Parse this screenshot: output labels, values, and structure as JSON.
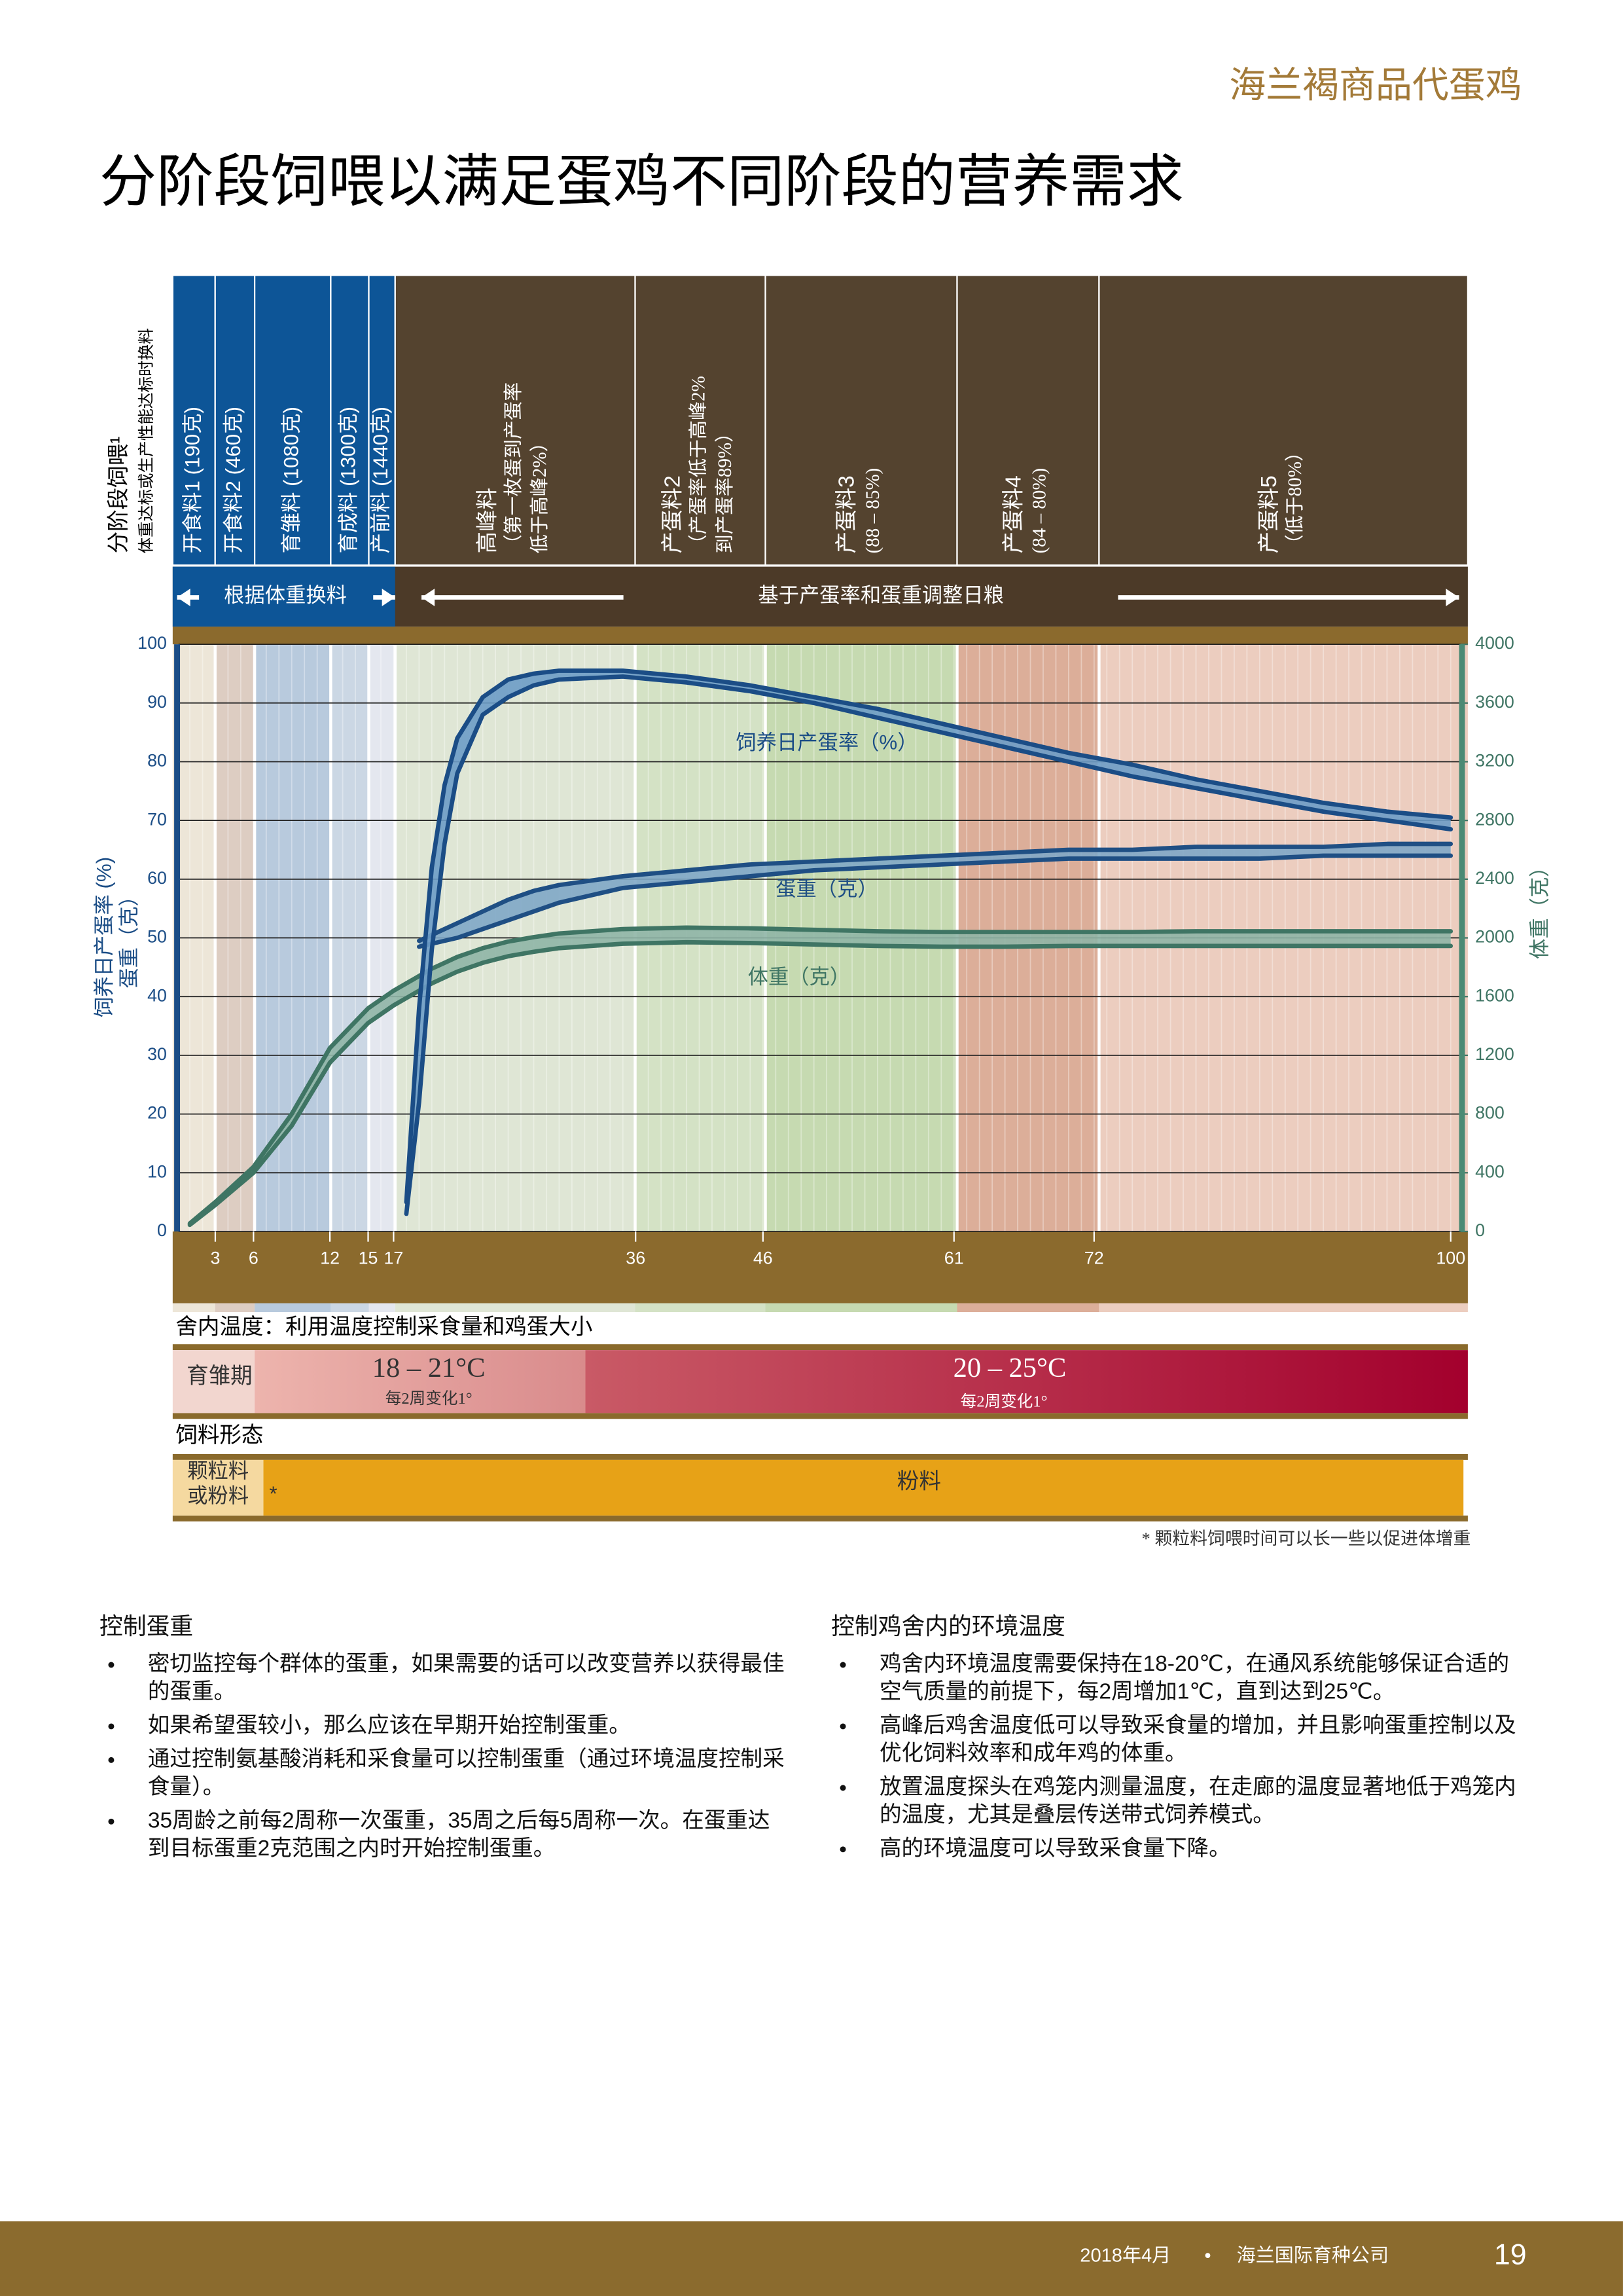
{
  "header": {
    "brand": "海兰褐商品代蛋鸡",
    "title": "分阶段饲喂以满足蛋鸡不同阶段的营养需求"
  },
  "phase_feeding": {
    "label": "分阶段饲喂¹",
    "note": "体重达标或生产性能达标时换料",
    "phases": [
      {
        "name": "开食料1 (190克)"
      },
      {
        "name": "开食料2 (460克)"
      },
      {
        "name": "育雏料 (1080克)"
      },
      {
        "name": "育成料 (1300克)"
      },
      {
        "name": "产前料 (1440克)"
      },
      {
        "name": "高峰料",
        "note": [
          "（第一枚蛋到产蛋率",
          "低于高峰2%）"
        ]
      },
      {
        "name": "产蛋料2",
        "note": [
          "（产蛋率低于高峰2%",
          "到产蛋率89%）"
        ]
      },
      {
        "name": "产蛋料3",
        "note": [
          "(88 – 85%)"
        ]
      },
      {
        "name": "产蛋料4",
        "note": [
          "(84 – 80%)"
        ]
      },
      {
        "name": "产蛋料5",
        "note": [
          "（低于80%）"
        ]
      }
    ],
    "change_by_weight": "根据体重换料",
    "adjust_by_production": "基于产蛋率和蛋重调整日粮"
  },
  "chart_data": {
    "type": "line",
    "x": [
      1,
      3,
      6,
      9,
      12,
      15,
      17,
      18,
      19,
      20,
      21,
      22,
      24,
      26,
      28,
      30,
      35,
      40,
      45,
      50,
      55,
      60,
      65,
      70,
      75,
      80,
      85,
      90,
      95,
      100
    ],
    "xlim": [
      0,
      101
    ],
    "xticks": [
      3,
      6,
      12,
      15,
      17,
      36,
      46,
      61,
      72,
      100
    ],
    "ylim": [
      0,
      100
    ],
    "yticks": [
      0,
      10,
      20,
      30,
      40,
      50,
      60,
      70,
      80,
      90,
      100
    ],
    "y2lim": [
      0,
      4000
    ],
    "y2ticks": [
      0,
      400,
      800,
      1200,
      1600,
      2000,
      2400,
      2800,
      3200,
      3600,
      4000
    ],
    "ylabel": [
      "饲养日产蛋率 (%)",
      "蛋重（克）"
    ],
    "y2label": "体重（克）",
    "grid": true,
    "series": [
      {
        "name": "饲养日产蛋率（%）",
        "color": "#1b4d86",
        "fill": "#6d9cc6",
        "high": [
          null,
          null,
          null,
          null,
          null,
          null,
          null,
          5,
          38,
          62,
          76,
          84,
          91,
          94,
          95,
          95.5,
          95.5,
          94.5,
          93,
          91,
          89,
          86.5,
          84,
          81.5,
          79.5,
          77,
          75,
          73,
          71.5,
          70.5
        ],
        "low": [
          null,
          null,
          null,
          null,
          null,
          null,
          null,
          3,
          22,
          48,
          66,
          78,
          88,
          91,
          93,
          94,
          94.5,
          93.5,
          92,
          90,
          87.5,
          85,
          82.5,
          80,
          77.5,
          75.5,
          73.5,
          71.5,
          70,
          68.5
        ]
      },
      {
        "name": "蛋重（克）",
        "color": "#1f4f84",
        "fill": "#7fa7c6",
        "high": [
          null,
          null,
          null,
          null,
          null,
          null,
          null,
          null,
          49.5,
          50.5,
          51.5,
          52.5,
          54.5,
          56.5,
          58,
          59,
          60.5,
          61.5,
          62.5,
          63,
          63.5,
          64,
          64.5,
          65,
          65,
          65.5,
          65.5,
          65.5,
          66,
          66
        ],
        "low": [
          null,
          null,
          null,
          null,
          null,
          null,
          null,
          null,
          48.5,
          49,
          49.5,
          50,
          51.5,
          53,
          54.5,
          56,
          58.5,
          59.5,
          60.5,
          61.5,
          62,
          62.5,
          63,
          63.5,
          63.5,
          63.5,
          63.5,
          64,
          64,
          64
        ]
      },
      {
        "name": "体重（克）",
        "color": "#3f7564",
        "fill": "#8fb5a6",
        "axis": "y2",
        "high": [
          55,
          200,
          440,
          800,
          1250,
          1520,
          1640,
          1690,
          1740,
          1790,
          1830,
          1870,
          1930,
          1975,
          2005,
          2030,
          2060,
          2070,
          2065,
          2055,
          2045,
          2040,
          2040,
          2040,
          2040,
          2045,
          2045,
          2045,
          2045,
          2045
        ],
        "low": [
          45,
          180,
          400,
          720,
          1150,
          1420,
          1540,
          1590,
          1640,
          1690,
          1730,
          1770,
          1830,
          1875,
          1905,
          1930,
          1960,
          1970,
          1965,
          1955,
          1945,
          1940,
          1940,
          1945,
          1945,
          1945,
          1945,
          1945,
          1945,
          1945
        ]
      }
    ]
  },
  "temperature": {
    "title": "舍内温度：利用温度控制采食量和鸡蛋大小",
    "brooding": "育雏期",
    "early": {
      "range": "18 – 21°C",
      "note": "每2周变化1°"
    },
    "late": {
      "range": "20 – 25°C",
      "note": "每2周变化1°"
    }
  },
  "feed_form": {
    "title": "饲料形态",
    "pellet_or_mash": [
      "颗粒料",
      "或粉料"
    ],
    "asterisk": "*",
    "mash": "粉料",
    "footnote": "* 颗粒料饲喂时间可以长一些以促进体增重"
  },
  "sections": [
    {
      "title": "控制蛋重",
      "bullets": [
        "密切监控每个群体的蛋重，如果需要的话可以改变营养以获得最佳的蛋重。",
        "如果希望蛋较小，那么应该在早期开始控制蛋重。",
        "通过控制氨基酸消耗和采食量可以控制蛋重（通过环境温度控制采食量）。",
        "35周龄之前每2周称一次蛋重，35周之后每5周称一次。在蛋重达到目标蛋重2克范围之内时开始控制蛋重。"
      ]
    },
    {
      "title": "控制鸡舍内的环境温度",
      "bullets": [
        "鸡舍内环境温度需要保持在18-20℃，在通风系统能够保证合适的空气质量的前提下，每2周增加1℃，直到达到25℃。",
        "高峰后鸡舍温度低可以导致采食量的增加，并且影响蛋重控制以及优化饲料效率和成年鸡的体重。",
        "放置温度探头在鸡笼内测量温度，在走廊的温度显著地低于鸡笼内的温度，尤其是叠层传送带式饲养模式。",
        "高的环境温度可以导致采食量下降。"
      ]
    }
  ],
  "footer": {
    "date": "2018年4月",
    "separator": "•",
    "company": "海兰国际育种公司",
    "page": "19"
  }
}
